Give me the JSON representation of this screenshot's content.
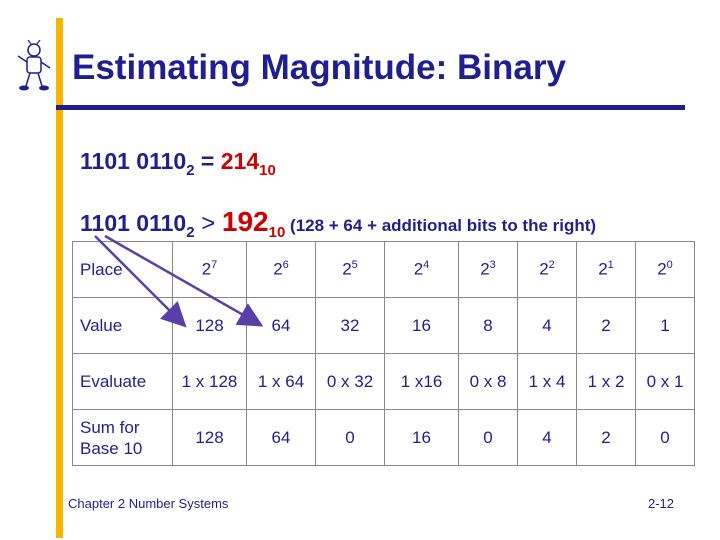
{
  "title": "Estimating Magnitude:  Binary",
  "line1": {
    "binary": "1101 011",
    "binary_tail": "0",
    "sub_base_2": "2",
    "equals": " = ",
    "decimal": "214",
    "sub_base_10": "10"
  },
  "line2": {
    "binary": "1101 011",
    "binary_tail": "0",
    "sub_base_2": "2",
    "gt": " > ",
    "decimal": "192",
    "sub_base_10": "10",
    "note": " (128 + 64 + additional bits to the right)"
  },
  "table": {
    "row_labels": [
      "Place",
      "Value",
      "Evaluate",
      "Sum for",
      "Base 10"
    ],
    "place_base": "2",
    "place_exponents": [
      "7",
      "6",
      "5",
      "4",
      "3",
      "2",
      "1",
      "0"
    ],
    "values": [
      "128",
      "64",
      "32",
      "16",
      "8",
      "4",
      "2",
      "1"
    ],
    "evaluate": [
      "1 x 128",
      "1 x 64",
      "0 x 32",
      "1 x16",
      "0 x 8",
      "1 x 4",
      "1 x 2",
      "0 x 1"
    ],
    "sums": [
      "128",
      "64",
      "0",
      "16",
      "0",
      "4",
      "2",
      "0"
    ]
  },
  "colors": {
    "text_blue": "#1F1F8F",
    "highlight_red": "#CC0000",
    "accent_gold": "#F7B500",
    "arrow": "#5B3FA8"
  },
  "footer": {
    "left": "Chapter 2 Number Systems",
    "right": "2-12"
  }
}
